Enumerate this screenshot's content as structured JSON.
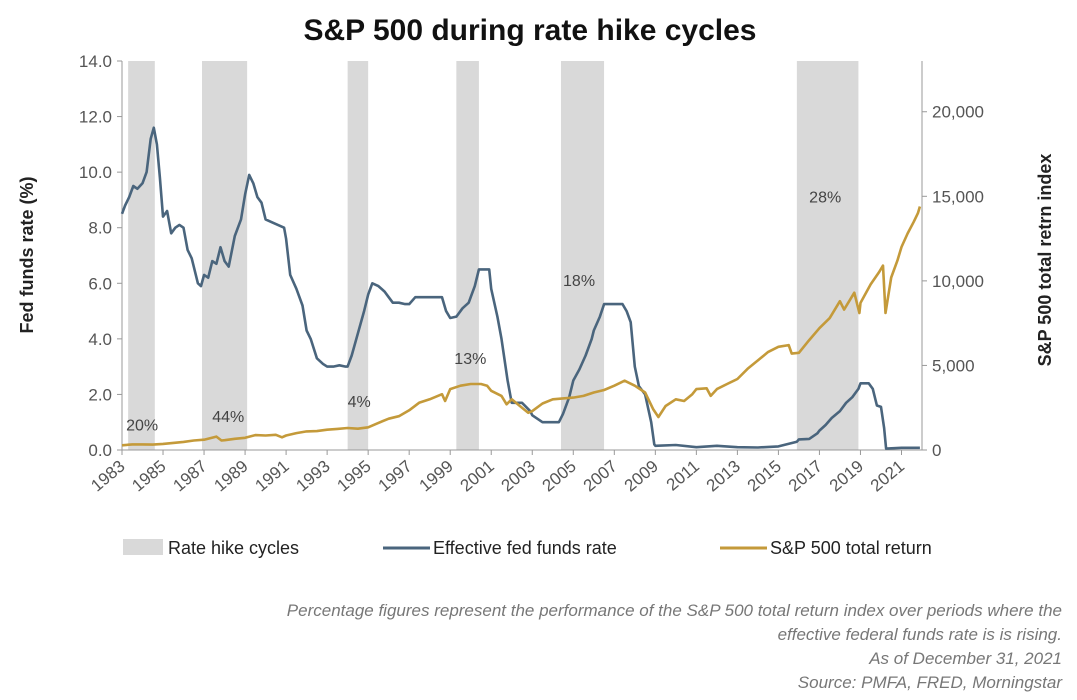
{
  "chart_data": {
    "type": "line",
    "title": "S&P 500 during rate hike cycles",
    "ylabel_left": "Fed funds rate (%)",
    "ylabel_right": "S&P 500 total retrn index",
    "xlim": [
      1983,
      2022
    ],
    "ylim_left": [
      0,
      14
    ],
    "ylim_right": [
      0,
      23000
    ],
    "x_ticks": [
      "1983",
      "1985",
      "1987",
      "1989",
      "1991",
      "1993",
      "1995",
      "1997",
      "1999",
      "2001",
      "2003",
      "2005",
      "2007",
      "2009",
      "2011",
      "2013",
      "2015",
      "2017",
      "2019",
      "2021"
    ],
    "y_ticks_left": [
      "0.0",
      "2.0",
      "4.0",
      "6.0",
      "8.0",
      "10.0",
      "12.0",
      "14.0"
    ],
    "y_ticks_right": [
      "0",
      "5,000",
      "10,000",
      "15,000",
      "20,000"
    ],
    "y_tick_values_left": [
      0,
      2,
      4,
      6,
      8,
      10,
      12,
      14
    ],
    "y_tick_values_right": [
      0,
      5000,
      10000,
      15000,
      20000
    ],
    "shaded_periods": [
      {
        "start": 1983.3,
        "end": 1984.6
      },
      {
        "start": 1986.9,
        "end": 1989.1
      },
      {
        "start": 1994.0,
        "end": 1995.0
      },
      {
        "start": 1999.3,
        "end": 2000.4
      },
      {
        "start": 2004.4,
        "end": 2006.5
      },
      {
        "start": 2015.9,
        "end": 2018.9
      }
    ],
    "annotations": [
      {
        "text": "20%",
        "x": 1983.2,
        "y": 0.7
      },
      {
        "text": "44%",
        "x": 1987.4,
        "y": 1.0
      },
      {
        "text": "4%",
        "x": 1994.0,
        "y": 1.55
      },
      {
        "text": "13%",
        "x": 1999.2,
        "y": 3.1
      },
      {
        "text": "18%",
        "x": 2004.5,
        "y": 5.9
      },
      {
        "text": "28%",
        "x": 2016.5,
        "y": 8.9
      }
    ],
    "series": [
      {
        "name": "Effective fed funds rate",
        "axis": "left",
        "color": "#4a657d",
        "points": [
          [
            1983.0,
            8.5
          ],
          [
            1983.15,
            8.8
          ],
          [
            1983.35,
            9.1
          ],
          [
            1983.55,
            9.5
          ],
          [
            1983.75,
            9.4
          ],
          [
            1984.0,
            9.6
          ],
          [
            1984.2,
            10.0
          ],
          [
            1984.4,
            11.2
          ],
          [
            1984.55,
            11.6
          ],
          [
            1984.7,
            11.0
          ],
          [
            1984.85,
            9.8
          ],
          [
            1985.0,
            8.4
          ],
          [
            1985.2,
            8.6
          ],
          [
            1985.4,
            7.8
          ],
          [
            1985.6,
            8.0
          ],
          [
            1985.8,
            8.1
          ],
          [
            1986.0,
            8.0
          ],
          [
            1986.2,
            7.2
          ],
          [
            1986.4,
            6.9
          ],
          [
            1986.7,
            6.0
          ],
          [
            1986.85,
            5.9
          ],
          [
            1987.0,
            6.3
          ],
          [
            1987.2,
            6.2
          ],
          [
            1987.4,
            6.8
          ],
          [
            1987.6,
            6.7
          ],
          [
            1987.8,
            7.3
          ],
          [
            1988.0,
            6.8
          ],
          [
            1988.2,
            6.6
          ],
          [
            1988.5,
            7.7
          ],
          [
            1988.8,
            8.3
          ],
          [
            1989.0,
            9.2
          ],
          [
            1989.2,
            9.9
          ],
          [
            1989.4,
            9.6
          ],
          [
            1989.6,
            9.1
          ],
          [
            1989.8,
            8.9
          ],
          [
            1990.0,
            8.3
          ],
          [
            1990.3,
            8.2
          ],
          [
            1990.6,
            8.1
          ],
          [
            1990.9,
            8.0
          ],
          [
            1991.0,
            7.6
          ],
          [
            1991.2,
            6.3
          ],
          [
            1991.5,
            5.8
          ],
          [
            1991.8,
            5.2
          ],
          [
            1992.0,
            4.3
          ],
          [
            1992.2,
            4.0
          ],
          [
            1992.5,
            3.3
          ],
          [
            1992.8,
            3.1
          ],
          [
            1993.0,
            3.0
          ],
          [
            1993.3,
            3.0
          ],
          [
            1993.6,
            3.05
          ],
          [
            1993.9,
            3.0
          ],
          [
            1994.0,
            3.0
          ],
          [
            1994.2,
            3.4
          ],
          [
            1994.5,
            4.2
          ],
          [
            1994.8,
            5.0
          ],
          [
            1995.0,
            5.6
          ],
          [
            1995.2,
            6.0
          ],
          [
            1995.5,
            5.9
          ],
          [
            1995.8,
            5.7
          ],
          [
            1996.0,
            5.5
          ],
          [
            1996.2,
            5.3
          ],
          [
            1996.5,
            5.3
          ],
          [
            1996.8,
            5.25
          ],
          [
            1997.0,
            5.25
          ],
          [
            1997.3,
            5.5
          ],
          [
            1997.6,
            5.5
          ],
          [
            1998.0,
            5.5
          ],
          [
            1998.3,
            5.5
          ],
          [
            1998.6,
            5.5
          ],
          [
            1998.8,
            5.0
          ],
          [
            1999.0,
            4.75
          ],
          [
            1999.3,
            4.8
          ],
          [
            1999.6,
            5.1
          ],
          [
            1999.9,
            5.3
          ],
          [
            2000.0,
            5.5
          ],
          [
            2000.2,
            5.9
          ],
          [
            2000.4,
            6.5
          ],
          [
            2000.7,
            6.5
          ],
          [
            2000.9,
            6.5
          ],
          [
            2001.0,
            5.8
          ],
          [
            2001.3,
            4.8
          ],
          [
            2001.5,
            4.0
          ],
          [
            2001.8,
            2.5
          ],
          [
            2002.0,
            1.7
          ],
          [
            2002.5,
            1.7
          ],
          [
            2002.9,
            1.4
          ],
          [
            2003.0,
            1.25
          ],
          [
            2003.5,
            1.0
          ],
          [
            2004.0,
            1.0
          ],
          [
            2004.3,
            1.0
          ],
          [
            2004.5,
            1.3
          ],
          [
            2004.8,
            1.9
          ],
          [
            2005.0,
            2.5
          ],
          [
            2005.3,
            2.9
          ],
          [
            2005.6,
            3.4
          ],
          [
            2005.9,
            4.0
          ],
          [
            2006.0,
            4.3
          ],
          [
            2006.3,
            4.8
          ],
          [
            2006.5,
            5.25
          ],
          [
            2006.8,
            5.25
          ],
          [
            2007.0,
            5.25
          ],
          [
            2007.4,
            5.25
          ],
          [
            2007.6,
            5.0
          ],
          [
            2007.8,
            4.6
          ],
          [
            2008.0,
            3.0
          ],
          [
            2008.2,
            2.3
          ],
          [
            2008.5,
            2.0
          ],
          [
            2008.8,
            1.0
          ],
          [
            2008.95,
            0.2
          ],
          [
            2009.0,
            0.15
          ],
          [
            2010.0,
            0.18
          ],
          [
            2011.0,
            0.1
          ],
          [
            2012.0,
            0.15
          ],
          [
            2013.0,
            0.1
          ],
          [
            2014.0,
            0.09
          ],
          [
            2015.0,
            0.13
          ],
          [
            2015.9,
            0.3
          ],
          [
            2016.0,
            0.38
          ],
          [
            2016.5,
            0.4
          ],
          [
            2016.9,
            0.6
          ],
          [
            2017.0,
            0.7
          ],
          [
            2017.3,
            0.9
          ],
          [
            2017.6,
            1.15
          ],
          [
            2018.0,
            1.4
          ],
          [
            2018.3,
            1.7
          ],
          [
            2018.6,
            1.9
          ],
          [
            2018.9,
            2.2
          ],
          [
            2019.0,
            2.4
          ],
          [
            2019.4,
            2.4
          ],
          [
            2019.6,
            2.2
          ],
          [
            2019.8,
            1.6
          ],
          [
            2020.0,
            1.55
          ],
          [
            2020.15,
            0.8
          ],
          [
            2020.25,
            0.05
          ],
          [
            2021.0,
            0.08
          ],
          [
            2021.9,
            0.08
          ]
        ]
      },
      {
        "name": "S&P 500 total return",
        "axis": "right",
        "color": "#c49a3a",
        "points": [
          [
            1983.0,
            280
          ],
          [
            1983.5,
            330
          ],
          [
            1984.0,
            330
          ],
          [
            1984.5,
            320
          ],
          [
            1985.0,
            360
          ],
          [
            1985.5,
            420
          ],
          [
            1986.0,
            480
          ],
          [
            1986.5,
            560
          ],
          [
            1987.0,
            610
          ],
          [
            1987.6,
            790
          ],
          [
            1987.85,
            560
          ],
          [
            1988.0,
            580
          ],
          [
            1988.5,
            660
          ],
          [
            1989.0,
            720
          ],
          [
            1989.5,
            880
          ],
          [
            1990.0,
            860
          ],
          [
            1990.5,
            900
          ],
          [
            1990.8,
            750
          ],
          [
            1991.0,
            860
          ],
          [
            1991.5,
            1000
          ],
          [
            1992.0,
            1100
          ],
          [
            1992.5,
            1120
          ],
          [
            1993.0,
            1200
          ],
          [
            1993.5,
            1250
          ],
          [
            1994.0,
            1300
          ],
          [
            1994.5,
            1260
          ],
          [
            1995.0,
            1340
          ],
          [
            1995.5,
            1600
          ],
          [
            1996.0,
            1850
          ],
          [
            1996.5,
            2000
          ],
          [
            1997.0,
            2350
          ],
          [
            1997.5,
            2800
          ],
          [
            1998.0,
            3000
          ],
          [
            1998.6,
            3300
          ],
          [
            1998.75,
            2900
          ],
          [
            1999.0,
            3600
          ],
          [
            1999.5,
            3800
          ],
          [
            2000.0,
            3900
          ],
          [
            2000.5,
            3900
          ],
          [
            2000.8,
            3800
          ],
          [
            2001.0,
            3500
          ],
          [
            2001.5,
            3200
          ],
          [
            2001.75,
            2700
          ],
          [
            2002.0,
            3000
          ],
          [
            2002.5,
            2500
          ],
          [
            2002.8,
            2200
          ],
          [
            2003.0,
            2300
          ],
          [
            2003.5,
            2750
          ],
          [
            2004.0,
            3000
          ],
          [
            2004.5,
            3050
          ],
          [
            2005.0,
            3100
          ],
          [
            2005.5,
            3200
          ],
          [
            2006.0,
            3400
          ],
          [
            2006.5,
            3550
          ],
          [
            2007.0,
            3800
          ],
          [
            2007.5,
            4100
          ],
          [
            2008.0,
            3800
          ],
          [
            2008.5,
            3400
          ],
          [
            2008.9,
            2400
          ],
          [
            2009.15,
            1950
          ],
          [
            2009.5,
            2600
          ],
          [
            2010.0,
            3000
          ],
          [
            2010.4,
            2900
          ],
          [
            2010.8,
            3300
          ],
          [
            2011.0,
            3600
          ],
          [
            2011.5,
            3650
          ],
          [
            2011.7,
            3200
          ],
          [
            2012.0,
            3600
          ],
          [
            2012.5,
            3900
          ],
          [
            2013.0,
            4200
          ],
          [
            2013.5,
            4800
          ],
          [
            2014.0,
            5300
          ],
          [
            2014.5,
            5800
          ],
          [
            2015.0,
            6100
          ],
          [
            2015.5,
            6200
          ],
          [
            2015.65,
            5700
          ],
          [
            2016.0,
            5750
          ],
          [
            2016.5,
            6500
          ],
          [
            2017.0,
            7200
          ],
          [
            2017.5,
            7800
          ],
          [
            2018.0,
            8800
          ],
          [
            2018.2,
            8300
          ],
          [
            2018.7,
            9300
          ],
          [
            2018.95,
            8100
          ],
          [
            2019.0,
            8700
          ],
          [
            2019.5,
            9800
          ],
          [
            2019.9,
            10500
          ],
          [
            2020.1,
            10900
          ],
          [
            2020.22,
            8100
          ],
          [
            2020.5,
            10200
          ],
          [
            2020.8,
            11200
          ],
          [
            2021.0,
            12000
          ],
          [
            2021.3,
            12800
          ],
          [
            2021.6,
            13500
          ],
          [
            2021.8,
            14000
          ],
          [
            2021.9,
            14400
          ]
        ]
      }
    ],
    "legend": {
      "placement": "bottom",
      "items": [
        {
          "label": "Rate hike cycles",
          "type": "box",
          "color": "#d9d9d9"
        },
        {
          "label": "Effective fed funds rate",
          "type": "line",
          "color": "#4a657d"
        },
        {
          "label": "S&P 500 total return",
          "type": "line",
          "color": "#c49a3a"
        }
      ]
    }
  },
  "footnotes": {
    "line1": "Percentage figures represent the performance of the S&P 500 total return index over periods where the",
    "line2": "effective federal funds rate is is rising.",
    "line3": "As of December 31, 2021",
    "line4": "Source: PMFA, FRED, Morningstar"
  }
}
